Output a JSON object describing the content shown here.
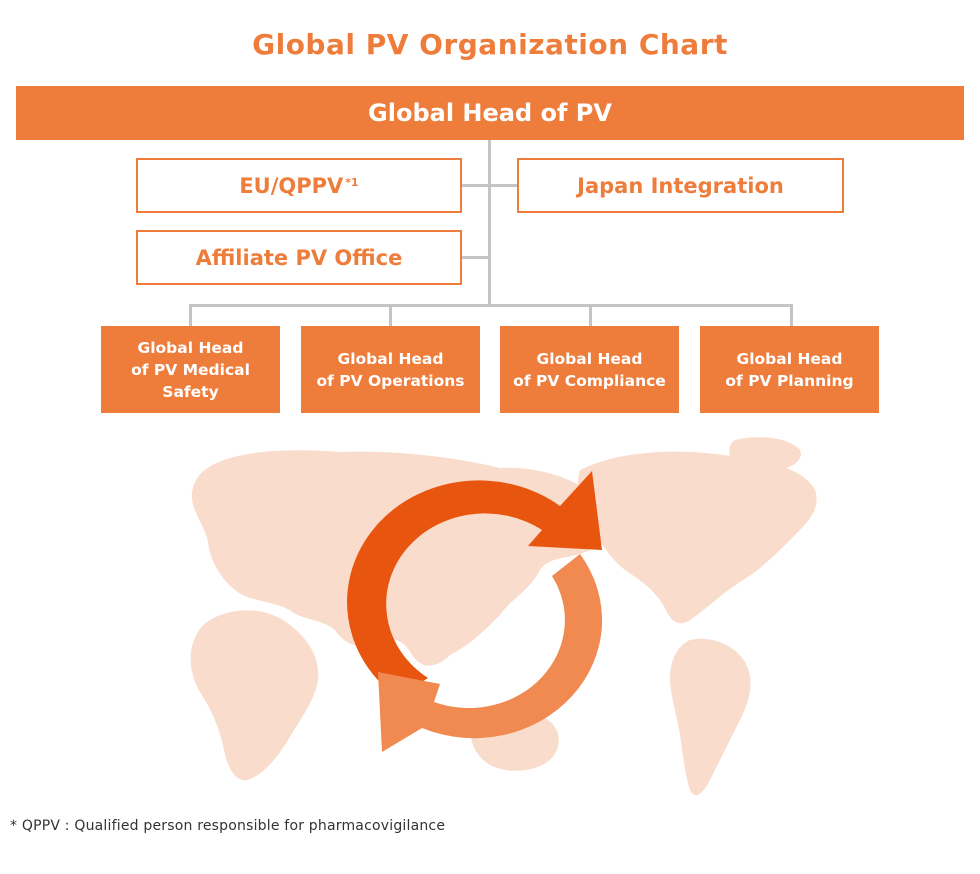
{
  "title": "Global PV Organization Chart",
  "top_node": "Global Head of PV",
  "side_nodes": {
    "eu_qppv": {
      "label": "EU/QPPV",
      "marker": "*1"
    },
    "japan_integration": "Japan Integration",
    "affiliate_pv_office": "Affiliate PV Office"
  },
  "bottom_nodes": [
    {
      "line1": "Global Head",
      "line2": "of PV Medical",
      "line3": "Safety"
    },
    {
      "line1": "Global Head",
      "line2": "of PV Operations",
      "line3": ""
    },
    {
      "line1": "Global Head",
      "line2": "of PV Compliance",
      "line3": ""
    },
    {
      "line1": "Global Head",
      "line2": "of PV Planning",
      "line3": ""
    }
  ],
  "footnote": "* QPPV : Qualified person responsible for pharmacovigilance",
  "colors": {
    "accent": "#ee7d3c",
    "connector": "#c4c4c4",
    "map": "#f9dccb",
    "arrow_dark": "#e8550f",
    "arrow_light": "#f08a50"
  },
  "icons": {
    "background": "world-map-icon",
    "cycle": "cycle-arrows-icon"
  }
}
